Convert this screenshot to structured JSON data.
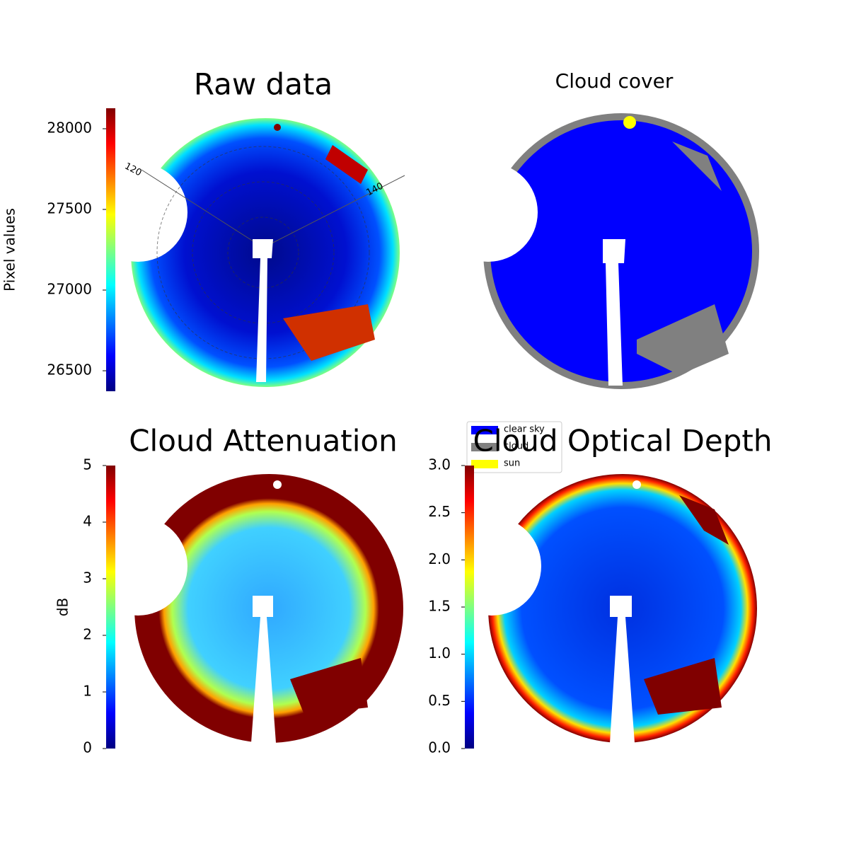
{
  "chart_data": [
    {
      "type": "image",
      "title": "Raw data",
      "colorbar_label": "Pixel values",
      "clim": [
        26373,
        28127
      ],
      "cticks": [
        26500,
        27000,
        27500,
        28000
      ],
      "annotations": [
        "120",
        "140"
      ]
    },
    {
      "type": "image",
      "title": "Cloud cover",
      "legend": [
        {
          "name": "clear sky",
          "color": "#0000ff"
        },
        {
          "name": "cloud",
          "color": "#808080"
        },
        {
          "name": "sun",
          "color": "#ffff00"
        }
      ]
    },
    {
      "type": "image",
      "title": "Cloud Attenuation",
      "colorbar_label": "dB",
      "clim": [
        0,
        5
      ],
      "cticks": [
        0,
        1,
        2,
        3,
        4,
        5
      ]
    },
    {
      "type": "image",
      "title": "Cloud Optical Depth",
      "clim": [
        0,
        3
      ],
      "cticks": [
        {
          "value": 0,
          "label": "0.0"
        },
        0.5,
        {
          "value": 1,
          "label": "1.0"
        },
        1.5,
        {
          "value": 2,
          "label": "2.0"
        },
        2.5,
        {
          "value": 3,
          "label": "3.0"
        }
      ]
    }
  ]
}
